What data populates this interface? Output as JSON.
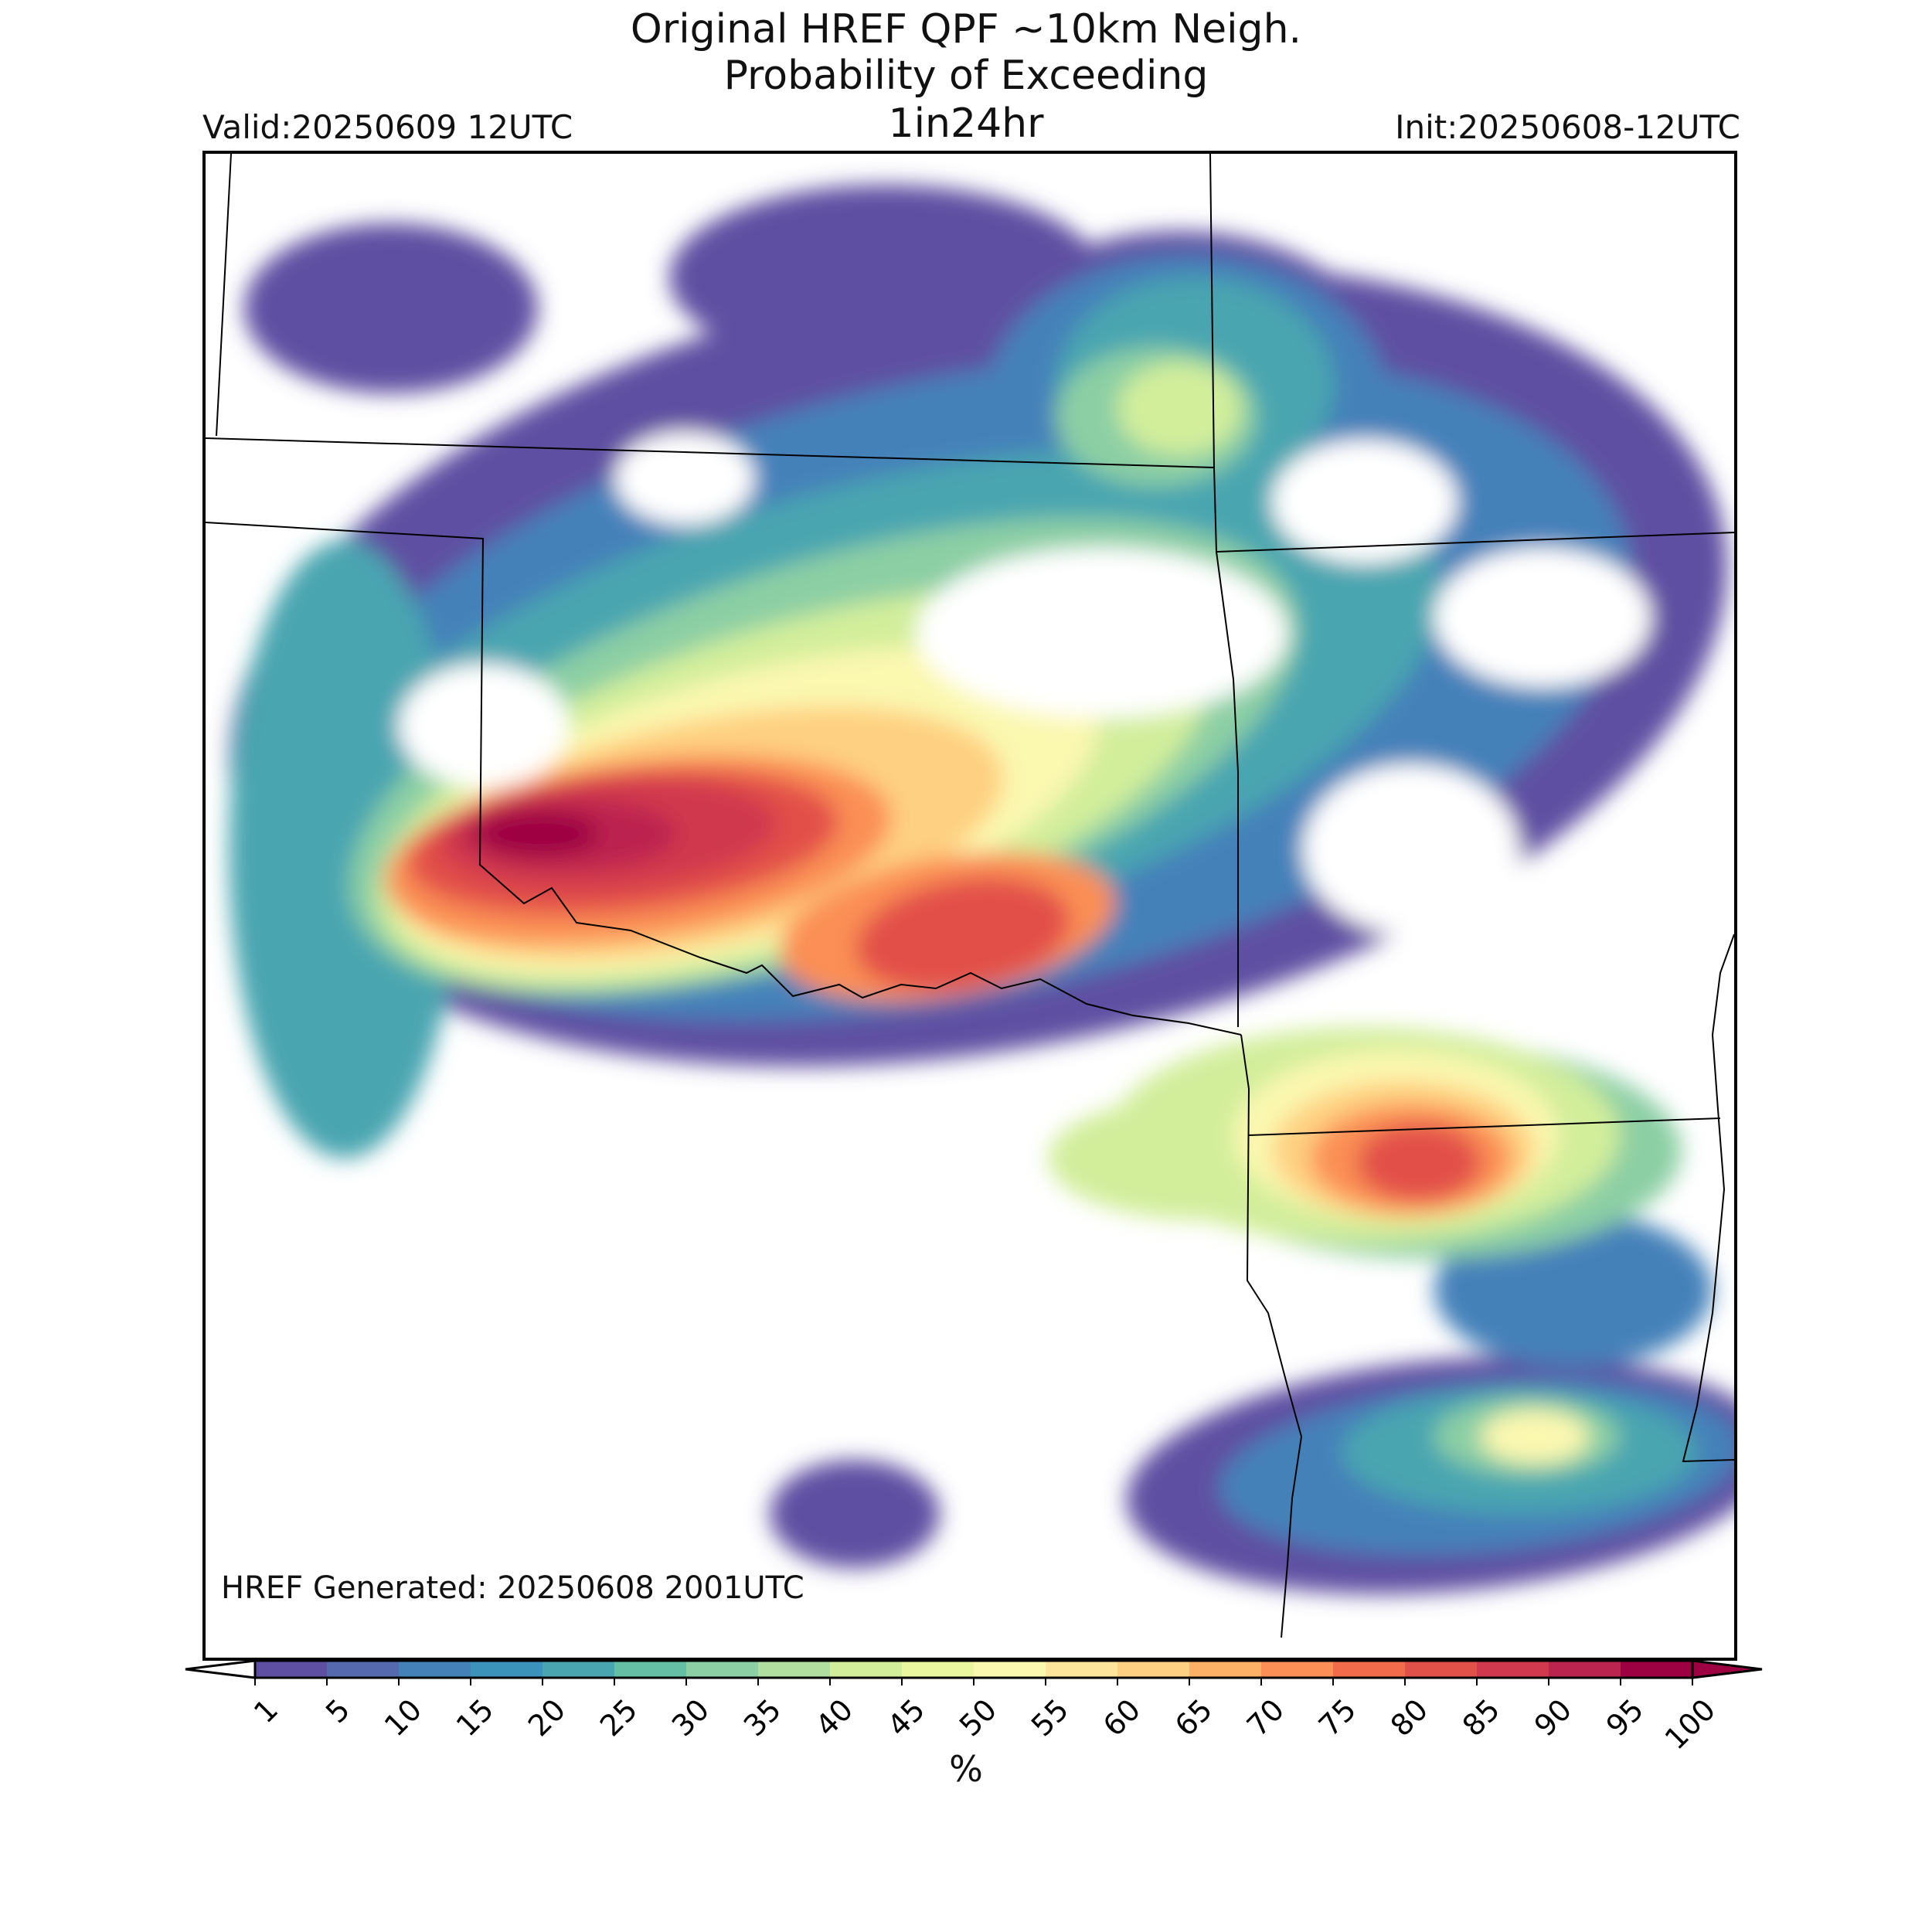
{
  "header": {
    "title_line1": "Original HREF QPF ~10km Neigh.",
    "title_line2": "Probability of Exceeding",
    "title_line3": "1in24hr",
    "valid": "Valid:20250609 12UTC",
    "init": "Init:20250608-12UTC"
  },
  "map": {
    "generated_note": "HREF Generated: 20250608 2001UTC"
  },
  "colorbar": {
    "label": "%",
    "ticks": [
      "1",
      "5",
      "10",
      "15",
      "20",
      "25",
      "30",
      "35",
      "40",
      "45",
      "50",
      "55",
      "60",
      "65",
      "70",
      "75",
      "80",
      "85",
      "90",
      "95",
      "100"
    ],
    "colors": [
      "#5e4fa2",
      "#5569ae",
      "#4581b9",
      "#3b92bb",
      "#49a5b0",
      "#65bfa5",
      "#8ccfa4",
      "#b0df9f",
      "#d2ee9b",
      "#eaf79e",
      "#fbf8b0",
      "#fde59b",
      "#fed081",
      "#fdb167",
      "#fb8f55",
      "#f26b4a",
      "#e2504a",
      "#d0394e",
      "#bc2450",
      "#9e0142"
    ],
    "extend": "both"
  },
  "chart_data": {
    "type": "heatmap",
    "title": "Original HREF QPF ~10km Neigh. Probability of Exceeding 1in24hr",
    "units": "%",
    "levels": [
      1,
      5,
      10,
      15,
      20,
      25,
      30,
      35,
      40,
      45,
      50,
      55,
      60,
      65,
      70,
      75,
      80,
      85,
      90,
      95,
      100
    ],
    "maxima": [
      {
        "area": "main band (west-central)",
        "value_pct": 90
      },
      {
        "area": "main band (central)",
        "value_pct": 75
      },
      {
        "area": "south-east core",
        "value_pct": 80
      },
      {
        "area": "northern cluster",
        "value_pct": 50
      },
      {
        "area": "far south-east",
        "value_pct": 50
      }
    ]
  }
}
